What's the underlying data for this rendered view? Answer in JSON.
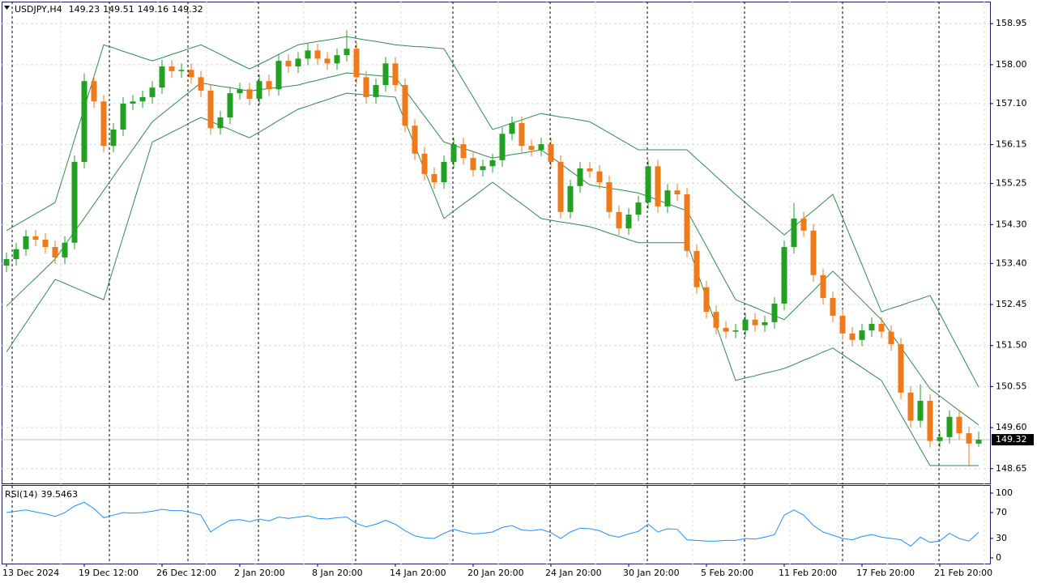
{
  "chart_data": [
    {
      "type": "candlestick",
      "symbol": "USDJPY,H4",
      "categories": [
        "13 Dec 2024",
        null,
        null,
        null,
        null,
        null,
        null,
        null,
        "19 Dec 12:00",
        null,
        null,
        null,
        null,
        null,
        null,
        null,
        "26 Dec 12:00",
        null,
        null,
        null,
        null,
        null,
        null,
        null,
        "2 Jan 20:00",
        null,
        null,
        null,
        null,
        null,
        null,
        null,
        "8 Jan 20:00",
        null,
        null,
        null,
        null,
        null,
        null,
        null,
        "14 Jan 20:00",
        null,
        null,
        null,
        null,
        null,
        null,
        null,
        "20 Jan 20:00",
        null,
        null,
        null,
        null,
        null,
        null,
        null,
        "24 Jan 20:00",
        null,
        null,
        null,
        null,
        null,
        null,
        null,
        "30 Jan 20:00",
        null,
        null,
        null,
        null,
        null,
        null,
        null,
        "5 Feb 20:00",
        null,
        null,
        null,
        null,
        null,
        null,
        null,
        "11 Feb 20:00",
        null,
        null,
        null,
        null,
        null,
        null,
        null,
        "17 Feb 20:00",
        null,
        null,
        null,
        null,
        null,
        null,
        null,
        "21 Feb 20:00",
        null,
        null,
        null,
        null
      ],
      "open": [
        153.35,
        153.5,
        153.73,
        154.03,
        153.95,
        153.78,
        153.54,
        153.88,
        155.75,
        157.62,
        157.15,
        156.12,
        156.5,
        157.1,
        157.15,
        157.25,
        157.47,
        157.96,
        157.85,
        157.88,
        157.71,
        157.4,
        156.53,
        156.78,
        157.34,
        157.43,
        157.21,
        157.62,
        157.43,
        158.09,
        157.96,
        158.14,
        158.33,
        158.14,
        158.03,
        158.22,
        158.37,
        157.71,
        157.25,
        157.53,
        158.03,
        157.53,
        156.59,
        155.94,
        155.47,
        155.28,
        155.75,
        156.16,
        155.84,
        155.56,
        155.65,
        155.79,
        156.4,
        156.65,
        156.12,
        156.03,
        156.16,
        155.75,
        154.59,
        155.19,
        155.6,
        155.53,
        155.28,
        154.59,
        154.21,
        154.53,
        154.81,
        155.65,
        154.72,
        155.09,
        155.0,
        153.69,
        152.85,
        152.28,
        151.91,
        151.82,
        151.85,
        152.1,
        151.97,
        152.04,
        152.47,
        153.78,
        154.44,
        154.16,
        153.13,
        152.6,
        152.19,
        151.78,
        151.63,
        151.85,
        152.0,
        151.82,
        151.53,
        150.41,
        149.76,
        150.22,
        149.29,
        149.38,
        149.85,
        149.47,
        149.23
      ],
      "high": [
        153.65,
        153.88,
        154.18,
        154.18,
        154.1,
        153.93,
        154.03,
        155.9,
        157.8,
        157.77,
        157.3,
        156.65,
        157.25,
        157.3,
        157.4,
        157.62,
        158.11,
        158.11,
        158.03,
        158.03,
        157.86,
        157.55,
        156.93,
        157.49,
        157.58,
        157.58,
        157.77,
        157.77,
        158.24,
        158.24,
        158.29,
        158.48,
        158.48,
        158.29,
        158.37,
        158.8,
        158.52,
        157.86,
        157.68,
        158.18,
        158.18,
        157.68,
        156.74,
        156.09,
        155.62,
        155.9,
        156.31,
        156.31,
        155.99,
        155.8,
        155.94,
        156.55,
        156.8,
        156.8,
        156.27,
        156.31,
        156.31,
        155.9,
        155.34,
        155.75,
        155.75,
        155.68,
        155.43,
        154.74,
        154.68,
        154.96,
        155.8,
        155.8,
        155.24,
        155.24,
        155.15,
        153.84,
        153.0,
        152.43,
        152.06,
        152.0,
        152.25,
        152.25,
        152.19,
        152.62,
        153.93,
        154.8,
        154.59,
        154.31,
        153.28,
        152.75,
        152.34,
        151.93,
        152.0,
        152.15,
        152.15,
        151.97,
        151.68,
        150.56,
        150.6,
        150.37,
        149.53,
        150.0,
        150.0,
        149.62,
        149.51
      ],
      "low": [
        153.2,
        153.35,
        153.58,
        153.8,
        153.63,
        153.39,
        153.39,
        153.73,
        155.6,
        157.0,
        155.97,
        155.97,
        156.35,
        156.95,
        157.0,
        157.1,
        157.32,
        157.7,
        157.7,
        157.56,
        157.25,
        156.38,
        156.38,
        156.63,
        157.19,
        157.06,
        157.06,
        157.28,
        157.28,
        157.81,
        157.81,
        157.99,
        157.99,
        157.88,
        157.88,
        158.07,
        157.56,
        157.1,
        157.1,
        157.38,
        157.38,
        156.44,
        155.79,
        155.32,
        155.13,
        155.13,
        155.6,
        155.69,
        155.41,
        155.41,
        155.5,
        155.64,
        156.25,
        155.97,
        155.88,
        155.88,
        155.6,
        154.44,
        154.44,
        155.04,
        155.38,
        155.13,
        154.44,
        154.06,
        154.06,
        154.38,
        154.66,
        154.57,
        154.57,
        154.85,
        153.54,
        152.7,
        152.13,
        151.76,
        151.67,
        151.67,
        151.7,
        151.82,
        151.82,
        151.89,
        152.32,
        153.63,
        154.01,
        152.98,
        152.45,
        152.04,
        151.63,
        151.48,
        151.48,
        151.7,
        151.67,
        151.38,
        150.26,
        149.61,
        149.61,
        149.14,
        149.14,
        149.23,
        149.32,
        148.7,
        149.16
      ],
      "close": [
        153.5,
        153.73,
        154.03,
        153.95,
        153.78,
        153.54,
        153.88,
        155.75,
        157.62,
        157.15,
        156.12,
        156.5,
        157.1,
        157.15,
        157.25,
        157.47,
        157.96,
        157.85,
        157.88,
        157.71,
        157.4,
        156.53,
        156.78,
        157.34,
        157.43,
        157.21,
        157.62,
        157.43,
        158.09,
        157.96,
        158.14,
        158.33,
        158.14,
        158.03,
        158.22,
        158.37,
        157.71,
        157.25,
        157.53,
        158.03,
        157.53,
        156.59,
        155.94,
        155.47,
        155.28,
        155.75,
        156.16,
        155.84,
        155.56,
        155.65,
        155.79,
        156.4,
        156.65,
        156.12,
        156.03,
        156.16,
        155.75,
        154.59,
        155.19,
        155.6,
        155.53,
        155.28,
        154.59,
        154.21,
        154.53,
        154.81,
        155.65,
        154.72,
        155.09,
        155.0,
        153.69,
        152.85,
        152.28,
        151.91,
        151.82,
        151.85,
        152.1,
        151.97,
        152.04,
        152.47,
        153.78,
        154.44,
        154.16,
        153.13,
        152.6,
        152.19,
        151.78,
        151.63,
        151.85,
        152.0,
        151.82,
        151.53,
        150.41,
        149.76,
        150.22,
        149.29,
        149.38,
        149.85,
        149.47,
        149.23,
        149.32
      ],
      "up_color": "#22a022",
      "down_color": "#f07a1a",
      "series": [
        {
          "color": "#2e8b4a",
          "values": [
            154.16,
            154.29,
            154.42,
            154.55,
            154.68,
            154.81,
            155.54,
            156.27,
            157.0,
            157.73,
            158.46,
            158.39,
            158.31,
            158.24,
            158.16,
            158.09,
            158.16,
            158.24,
            158.31,
            158.39,
            158.46,
            158.35,
            158.24,
            158.12,
            158.01,
            157.9,
            158.01,
            158.12,
            158.24,
            158.35,
            158.46,
            158.5,
            158.54,
            158.57,
            158.61,
            158.65,
            158.61,
            158.57,
            158.54,
            158.5,
            158.46,
            158.44,
            158.42,
            158.41,
            158.39,
            158.37,
            158.0,
            157.62,
            157.25,
            156.87,
            156.5,
            156.57,
            156.65,
            156.72,
            156.8,
            156.87,
            156.83,
            156.79,
            156.76,
            156.72,
            156.68,
            156.55,
            156.42,
            156.29,
            156.16,
            156.03,
            156.03,
            156.03,
            156.03,
            156.03,
            156.03,
            155.82,
            155.62,
            155.41,
            155.21,
            155.0,
            154.81,
            154.62,
            154.44,
            154.25,
            154.06,
            154.25,
            154.44,
            154.62,
            154.81,
            155.0,
            154.46,
            153.91,
            153.37,
            152.82,
            152.28,
            152.36,
            152.43,
            152.51,
            152.58,
            152.66,
            152.24,
            151.81,
            151.39,
            150.96,
            150.54
          ]
        },
        {
          "color": "#2e8b4a",
          "values": [
            152.41,
            152.63,
            152.85,
            153.06,
            153.28,
            153.5,
            153.82,
            154.14,
            154.45,
            154.77,
            155.09,
            155.41,
            155.73,
            156.04,
            156.36,
            156.68,
            156.86,
            157.04,
            157.22,
            157.4,
            157.58,
            157.54,
            157.5,
            157.47,
            157.43,
            157.39,
            157.42,
            157.45,
            157.47,
            157.5,
            157.53,
            157.59,
            157.64,
            157.7,
            157.75,
            157.81,
            157.79,
            157.77,
            157.75,
            157.73,
            157.71,
            157.41,
            157.11,
            156.81,
            156.51,
            156.21,
            156.14,
            156.06,
            155.99,
            155.91,
            155.84,
            155.88,
            155.92,
            155.95,
            155.99,
            156.03,
            155.87,
            155.71,
            155.54,
            155.38,
            155.22,
            155.18,
            155.14,
            155.11,
            155.07,
            155.03,
            154.95,
            154.87,
            154.78,
            154.7,
            154.62,
            154.21,
            153.8,
            153.38,
            152.97,
            152.56,
            152.47,
            152.38,
            152.28,
            152.19,
            152.1,
            152.32,
            152.55,
            152.77,
            153.0,
            153.22,
            153.0,
            152.77,
            152.55,
            152.32,
            152.1,
            151.78,
            151.46,
            151.14,
            150.82,
            150.5,
            150.33,
            150.16,
            149.99,
            149.83,
            149.66
          ]
        },
        {
          "color": "#2e8b4a",
          "values": [
            151.35,
            151.69,
            152.02,
            152.36,
            152.69,
            153.03,
            152.94,
            152.84,
            152.75,
            152.65,
            152.56,
            153.29,
            154.02,
            154.75,
            155.48,
            156.21,
            156.32,
            156.44,
            156.55,
            156.67,
            156.78,
            156.69,
            156.59,
            156.5,
            156.4,
            156.31,
            156.44,
            156.57,
            156.71,
            156.84,
            156.97,
            157.04,
            157.12,
            157.19,
            157.27,
            157.34,
            157.32,
            157.3,
            157.29,
            157.27,
            157.25,
            156.69,
            156.13,
            155.56,
            155.0,
            154.44,
            154.61,
            154.78,
            154.94,
            155.11,
            155.28,
            155.11,
            154.94,
            154.78,
            154.61,
            154.44,
            154.4,
            154.36,
            154.33,
            154.29,
            154.25,
            154.18,
            154.1,
            154.03,
            153.95,
            153.88,
            153.88,
            153.88,
            153.88,
            153.88,
            153.88,
            153.24,
            152.6,
            151.97,
            151.33,
            150.69,
            150.75,
            150.8,
            150.86,
            150.91,
            150.97,
            151.06,
            151.16,
            151.25,
            151.35,
            151.44,
            151.29,
            151.14,
            150.99,
            150.84,
            150.69,
            150.3,
            149.9,
            149.51,
            149.11,
            148.72,
            148.72,
            148.72,
            148.72,
            148.72,
            148.72
          ]
        }
      ],
      "ylim": [
        148.29,
        159.46
      ],
      "yticks": [
        148.65,
        {
          "value": 149.6,
          "label": "149.60"
        },
        150.55,
        {
          "value": 151.5,
          "label": "151.50"
        },
        152.45,
        {
          "value": 153.4,
          "label": "153.40"
        },
        {
          "value": 154.3,
          "label": "154.30"
        },
        155.25,
        156.15,
        {
          "value": 157.1,
          "label": "157.10"
        },
        {
          "value": 158,
          "label": "158.00"
        },
        158.95
      ],
      "grid": true
    },
    {
      "type": "line",
      "title": "RSI(14)",
      "color": "#1e90ff",
      "values": [
        70,
        72,
        74,
        71,
        68,
        64,
        70,
        80,
        86,
        76,
        62,
        66,
        70,
        69,
        70,
        72,
        75,
        73,
        73,
        70,
        66,
        40,
        50,
        58,
        59,
        56,
        60,
        57,
        63,
        61,
        63,
        65,
        61,
        60,
        62,
        63,
        53,
        48,
        52,
        58,
        52,
        42,
        34,
        31,
        30,
        38,
        44,
        40,
        37,
        38,
        40,
        47,
        50,
        43,
        42,
        44,
        39,
        30,
        40,
        46,
        45,
        42,
        35,
        32,
        37,
        41,
        52,
        40,
        45,
        44,
        28,
        27,
        26,
        26,
        27,
        27,
        30,
        29,
        32,
        36,
        66,
        74,
        66,
        50,
        40,
        35,
        30,
        28,
        33,
        36,
        32,
        30,
        28,
        18,
        32,
        24,
        26,
        38,
        30,
        26,
        39.5463
      ],
      "ylim": [
        -10,
        111.25
      ],
      "yticks": [
        100,
        70,
        30,
        0
      ]
    }
  ]
}
